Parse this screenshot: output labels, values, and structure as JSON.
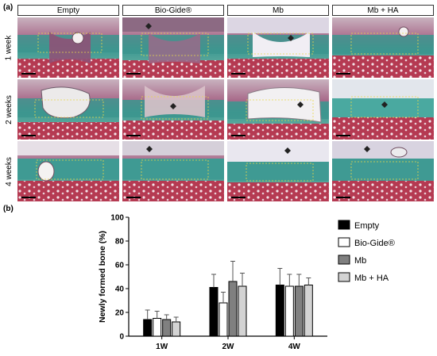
{
  "panel_a": {
    "label": "(a)",
    "columns": [
      "Empty",
      "Bio-Gide®",
      "Mb",
      "Mb + HA"
    ],
    "rows": [
      "1 week",
      "2 weeks",
      "4 weeks"
    ]
  },
  "panel_b": {
    "label": "(b)"
  },
  "chart_data": {
    "type": "bar",
    "categories": [
      "1W",
      "2W",
      "4W"
    ],
    "series": [
      {
        "name": "Empty",
        "values": [
          14,
          41,
          43
        ],
        "errors": [
          8,
          11,
          14
        ]
      },
      {
        "name": "Bio-Gide®",
        "values": [
          15,
          28,
          42
        ],
        "errors": [
          6,
          9,
          10
        ]
      },
      {
        "name": "Mb",
        "values": [
          14,
          46,
          42
        ],
        "errors": [
          4,
          17,
          10
        ]
      },
      {
        "name": "Mb + HA",
        "values": [
          12,
          42,
          43
        ],
        "errors": [
          4,
          11,
          6
        ]
      }
    ],
    "colors": [
      "#000000",
      "#ffffff",
      "#808080",
      "#d3d3d3"
    ],
    "ylabel": "Newly formed bone (%)",
    "xlabel": "",
    "ylim": [
      0,
      100
    ],
    "yticks": [
      0,
      20,
      40,
      60,
      80,
      100
    ],
    "legend_position": "right",
    "grid": false
  }
}
